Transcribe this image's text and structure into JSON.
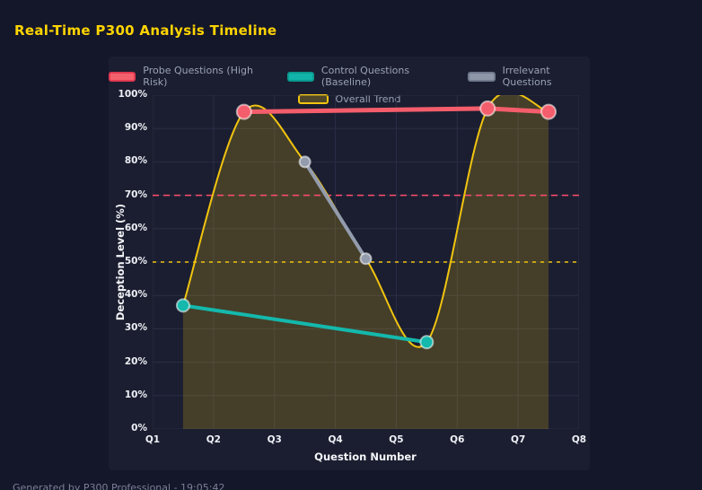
{
  "page": {
    "title": "Real-Time P300 Analysis Timeline",
    "footer": "Generated by P300 Professional - 19:05:42"
  },
  "colors": {
    "background": "#14162a",
    "panel": "#1b1e30",
    "grid": "#2a2e46",
    "title": "#ffd400",
    "tick_text": "#eef0f6",
    "axis_title": "#f5f6fa",
    "legend_text": "#9aa2b5",
    "footer_text": "#7b8095",
    "probe_red": "#f45d6b",
    "control_teal": "#14b8ac",
    "irrelevant_gray": "#939cad",
    "trend_yellow": "#f1c40f",
    "threshold_red": "#ff4d6d"
  },
  "chart_data": {
    "type": "line",
    "title": "Real-Time P300 Analysis Timeline",
    "xlabel": "Question Number",
    "ylabel": "Deception Level (%)",
    "xlim": [
      1,
      8
    ],
    "ylim": [
      0,
      100
    ],
    "grid": true,
    "legend_position": "top",
    "x_tick_labels": [
      "Q1",
      "Q2",
      "Q3",
      "Q4",
      "Q5",
      "Q6",
      "Q7",
      "Q8"
    ],
    "x_tick_values": [
      1,
      2,
      3,
      4,
      5,
      6,
      7,
      8
    ],
    "y_tick_labels": [
      "0%",
      "10%",
      "20%",
      "30%",
      "40%",
      "50%",
      "60%",
      "70%",
      "80%",
      "90%",
      "100%"
    ],
    "y_tick_values": [
      0,
      10,
      20,
      30,
      40,
      50,
      60,
      70,
      80,
      90,
      100
    ],
    "series": [
      {
        "name": "Probe Questions (High Risk)",
        "color": "#f45d6b",
        "line_width": 5,
        "marker_radius": 8,
        "smooth": false,
        "x": [
          2.5,
          6.5,
          7.5
        ],
        "values": [
          95,
          96,
          95
        ],
        "swatch_bg": "#f4616d",
        "swatch_border": "#e23a52"
      },
      {
        "name": "Control Questions (Baseline)",
        "color": "#14b8ac",
        "line_width": 4,
        "marker_radius": 7,
        "smooth": false,
        "x": [
          1.5,
          5.5
        ],
        "values": [
          37,
          26
        ],
        "swatch_bg": "#12b3a8",
        "swatch_border": "#0a9a90"
      },
      {
        "name": "Irrelevant Questions",
        "color": "#939cad",
        "line_width": 4,
        "marker_radius": 6,
        "smooth": false,
        "x": [
          3.5,
          4.5
        ],
        "values": [
          80,
          51
        ],
        "swatch_bg": "#8e97a8",
        "swatch_border": "#6f7a8e"
      },
      {
        "name": "Overall Trend",
        "color": "#f1c40f",
        "line_width": 2,
        "marker_radius": 0,
        "smooth": true,
        "area_fill": "rgba(241,196,15,0.20)",
        "x": [
          1.5,
          2.5,
          3.5,
          4.5,
          5.5,
          6.5,
          7.5
        ],
        "values": [
          37,
          95,
          80,
          51,
          26,
          96,
          95
        ],
        "swatch_bg": "rgba(241,196,15,0.25)",
        "swatch_border": "#f1c40f"
      }
    ],
    "reference_lines": [
      {
        "value": 70,
        "color": "#ff4d6d",
        "dash": "7 5",
        "width": 1.5
      },
      {
        "value": 50,
        "color": "#f1c40f",
        "dash": "4 5",
        "width": 1.5
      }
    ]
  }
}
